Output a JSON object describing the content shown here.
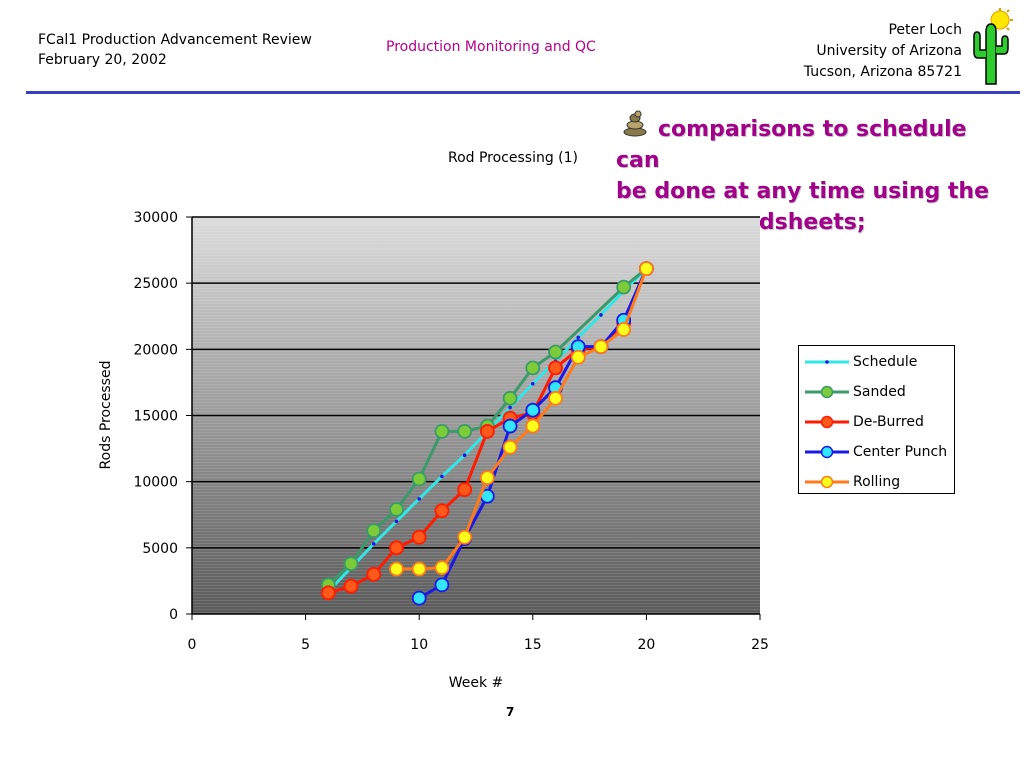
{
  "header": {
    "left_line1": "FCal1 Production Advancement Review",
    "left_line2": "February 20, 2002",
    "center": "Production Monitoring and QC",
    "right_line1": "Peter Loch",
    "right_line2": "University of Arizona",
    "right_line3": "Tucson, Arizona 85721"
  },
  "comment": {
    "icon": "snake-bullet-icon",
    "line1": "comparisons to schedule can",
    "line2": "be done at any time using the",
    "line3": "same spreadsheets;"
  },
  "page_number": "7",
  "colors": {
    "accent": "#b5008c",
    "rule": "#3a3fc4",
    "schedule": "#33e6e6",
    "sanded": "#3a9a6a",
    "deburred": "#ff1a00",
    "centerpunch": "#1a1ae6",
    "rolling": "#ff7a1a"
  },
  "chart_data": {
    "type": "line",
    "title": "Rod Processing (1)",
    "xlabel": "Week #",
    "ylabel": "Rods Processed",
    "xlim": [
      0,
      25
    ],
    "ylim": [
      0,
      30000
    ],
    "xticks": [
      "0",
      "5",
      "10",
      "15",
      "20",
      "25"
    ],
    "yticks": [
      "0",
      "5000",
      "10000",
      "15000",
      "20000",
      "25000",
      "30000"
    ],
    "grid": "horizontal",
    "legend_position": "right",
    "series": [
      {
        "name": "Schedule",
        "color": "#33e6e6",
        "marker_fill": "#1a1ae6",
        "marker": "dot",
        "x": [
          6,
          7,
          8,
          9,
          10,
          11,
          12,
          13,
          14,
          15,
          16,
          17,
          18,
          19,
          20
        ],
        "y": [
          1700,
          3500,
          5300,
          7000,
          8700,
          10400,
          12000,
          13800,
          15600,
          17400,
          19100,
          20900,
          22600,
          24400,
          26100
        ]
      },
      {
        "name": "Sanded",
        "color": "#3a9a6a",
        "marker_fill": "#7ccc3a",
        "marker": "circle",
        "x": [
          6,
          7,
          8,
          9,
          10,
          11,
          12,
          13,
          14,
          15,
          16,
          19,
          20
        ],
        "y": [
          2200,
          3800,
          6300,
          7900,
          10200,
          13800,
          13800,
          14200,
          16300,
          18600,
          19800,
          24700,
          26100
        ]
      },
      {
        "name": "De-Burred",
        "color": "#ff1a00",
        "marker_fill": "#ff5a1a",
        "marker": "circle",
        "x": [
          6,
          7,
          8,
          9,
          10,
          11,
          12,
          13,
          14,
          15,
          16,
          17,
          18,
          19,
          20
        ],
        "y": [
          1600,
          2100,
          3000,
          5000,
          5800,
          7800,
          9400,
          13800,
          14800,
          15200,
          18600,
          20000,
          20200,
          22000,
          26100
        ]
      },
      {
        "name": "Center Punch",
        "color": "#1a1ae6",
        "marker_fill": "#33e6ff",
        "marker": "circle",
        "x": [
          10,
          11,
          12,
          13,
          14,
          15,
          16,
          17,
          18,
          19,
          20
        ],
        "y": [
          1200,
          2200,
          5700,
          8900,
          14200,
          15400,
          17100,
          20200,
          20200,
          22200,
          26100
        ]
      },
      {
        "name": "Rolling",
        "color": "#ff7a1a",
        "marker_fill": "#ffff1a",
        "marker": "circle",
        "x": [
          9,
          10,
          11,
          12,
          13,
          14,
          15,
          16,
          17,
          18,
          19,
          20
        ],
        "y": [
          3400,
          3400,
          3500,
          5800,
          10300,
          12600,
          14200,
          16300,
          19400,
          20200,
          21500,
          26100
        ]
      }
    ]
  }
}
